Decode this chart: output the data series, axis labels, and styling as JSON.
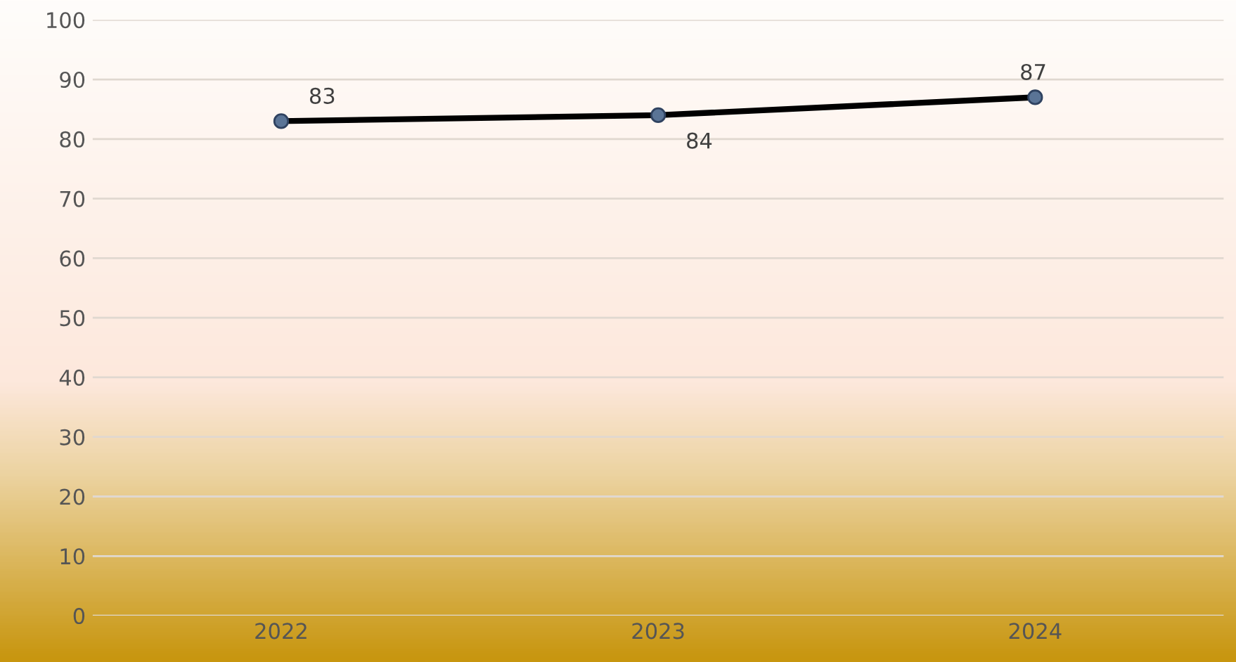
{
  "chart_data": {
    "type": "line",
    "categories": [
      "2022",
      "2023",
      "2024"
    ],
    "series": [
      {
        "color": "#000000",
        "values": [
          83,
          84,
          87
        ]
      }
    ],
    "marker": "circle",
    "line_style": "solid",
    "data_labels": true,
    "ylim": [
      0,
      100
    ],
    "yticks": [
      0,
      10,
      20,
      30,
      40,
      50,
      60,
      70,
      80,
      90,
      100
    ],
    "grid": "y",
    "legend": false
  }
}
